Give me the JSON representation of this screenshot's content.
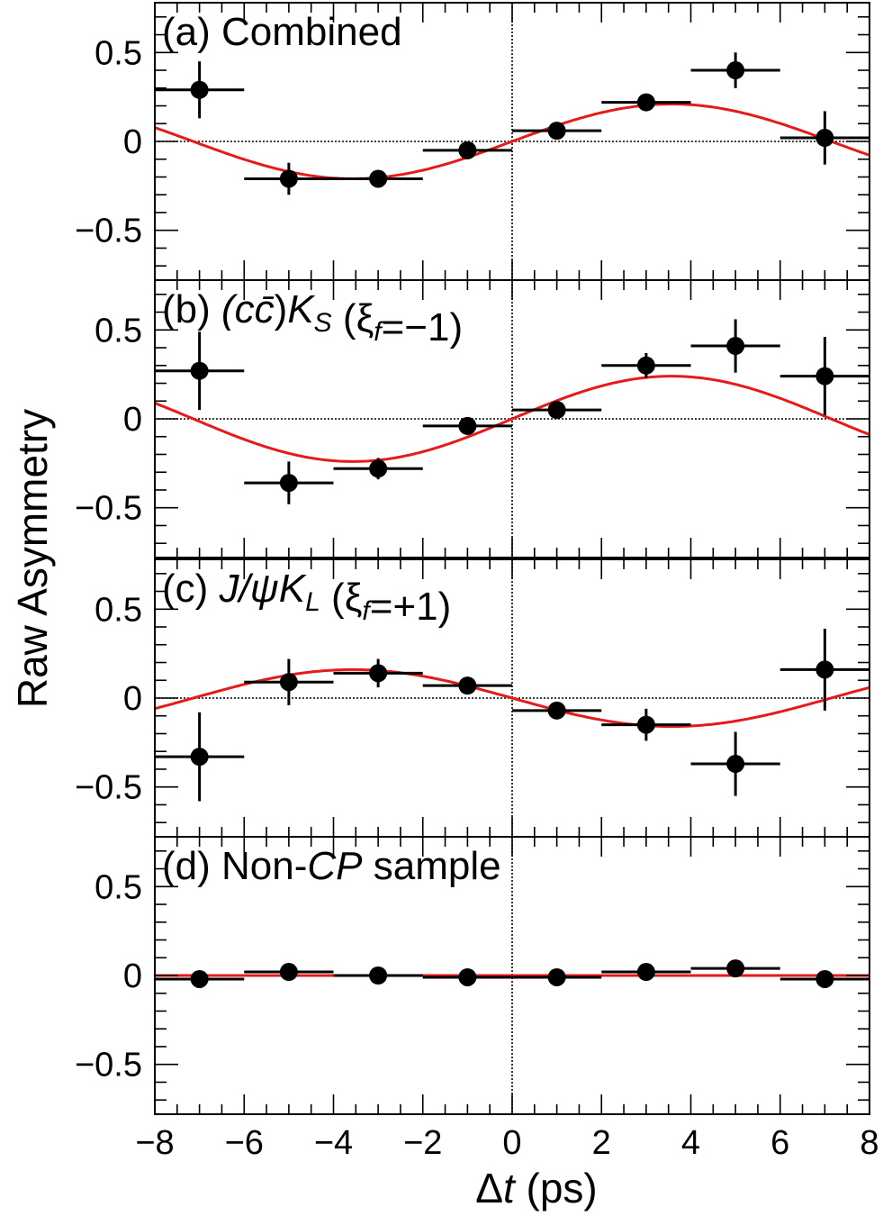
{
  "chart_data": [
    {
      "type": "scatter",
      "panel_label": "(a)",
      "title_parts": [
        {
          "t": "Combined",
          "s": "normal"
        }
      ],
      "x_bin_centers": [
        -7,
        -5,
        -3,
        -1,
        1,
        3,
        5,
        7
      ],
      "x_bin_half_width": 1,
      "y": [
        0.29,
        -0.21,
        -0.21,
        -0.05,
        0.06,
        0.22,
        0.4,
        0.02
      ],
      "y_err": [
        0.16,
        0.09,
        0.03,
        0.04,
        0.03,
        0.04,
        0.1,
        0.15
      ],
      "fit_curve": {
        "function": "sine",
        "amplitude": 0.21,
        "omega": 0.44,
        "color": "#e8191a"
      },
      "xlim": [
        -8,
        8
      ],
      "ylim": [
        -0.78,
        0.78
      ]
    },
    {
      "type": "scatter",
      "panel_label": "(b)",
      "title_parts": [
        {
          "t": "(c",
          "s": "italic"
        },
        {
          "t": "c̄",
          "s": "italic"
        },
        {
          "t": ")",
          "s": "normal"
        },
        {
          "t": "K",
          "s": "italic"
        },
        {
          "t": "S",
          "s": "italic-sub"
        },
        {
          "t": " (ξ",
          "s": "normal"
        },
        {
          "t": "f",
          "s": "italic-sub"
        },
        {
          "t": "=−1)",
          "s": "normal"
        }
      ],
      "x_bin_centers": [
        -7,
        -5,
        -3,
        -1,
        1,
        3,
        5,
        7
      ],
      "x_bin_half_width": 1,
      "y": [
        0.27,
        -0.36,
        -0.28,
        -0.04,
        0.05,
        0.3,
        0.41,
        0.24
      ],
      "y_err": [
        0.22,
        0.12,
        0.06,
        0.03,
        0.03,
        0.07,
        0.15,
        0.22
      ],
      "fit_curve": {
        "function": "sine",
        "amplitude": 0.24,
        "omega": 0.44,
        "color": "#e8191a"
      },
      "xlim": [
        -8,
        8
      ],
      "ylim": [
        -0.78,
        0.78
      ]
    },
    {
      "type": "scatter",
      "panel_label": "(c)",
      "title_parts": [
        {
          "t": "J/ψ",
          "s": "italic"
        },
        {
          "t": "K",
          "s": "italic"
        },
        {
          "t": "L",
          "s": "italic-sub"
        },
        {
          "t": "  (ξ",
          "s": "normal"
        },
        {
          "t": "f",
          "s": "italic-sub"
        },
        {
          "t": "=+1)",
          "s": "normal"
        }
      ],
      "x_bin_centers": [
        -7,
        -5,
        -3,
        -1,
        1,
        3,
        5,
        7
      ],
      "x_bin_half_width": 1,
      "y": [
        -0.33,
        0.09,
        0.14,
        0.07,
        -0.07,
        -0.15,
        -0.37,
        0.16
      ],
      "y_err": [
        0.25,
        0.13,
        0.08,
        0.03,
        0.03,
        0.09,
        0.18,
        0.23
      ],
      "fit_curve": {
        "function": "sine",
        "amplitude": -0.16,
        "omega": 0.44,
        "color": "#e8191a"
      },
      "xlim": [
        -8,
        8
      ],
      "ylim": [
        -0.78,
        0.78
      ]
    },
    {
      "type": "scatter",
      "panel_label": "(d)",
      "title_parts": [
        {
          "t": "Non-",
          "s": "normal"
        },
        {
          "t": "CP",
          "s": "italic"
        },
        {
          "t": " sample",
          "s": "normal"
        }
      ],
      "x_bin_centers": [
        -7,
        -5,
        -3,
        -1,
        1,
        3,
        5,
        7
      ],
      "x_bin_half_width": 1,
      "y": [
        -0.02,
        0.02,
        0.0,
        -0.01,
        -0.01,
        0.02,
        0.04,
        -0.02
      ],
      "y_err": [
        0.01,
        0.01,
        0.01,
        0.01,
        0.01,
        0.01,
        0.01,
        0.01
      ],
      "fit_curve": {
        "function": "sine",
        "amplitude": 0.0,
        "omega": 0.44,
        "color": "#e8191a"
      },
      "xlim": [
        -8,
        8
      ],
      "ylim": [
        -0.78,
        0.78
      ]
    }
  ],
  "y_ticks": [
    0.5,
    0,
    -0.5
  ],
  "y_tick_labels": [
    "0.5",
    "0",
    "−0.5"
  ],
  "x_ticks": [
    -8,
    -6,
    -4,
    -2,
    0,
    2,
    4,
    6,
    8
  ],
  "x_tick_labels": [
    "−8",
    "−6",
    "−4",
    "−2",
    "0",
    "2",
    "4",
    "6",
    "8"
  ],
  "ylabel": "Raw Asymmetry",
  "xlabel": {
    "delta": "Δ",
    "var": "t",
    "unit": " (ps)"
  },
  "colors": {
    "data": "#000000",
    "fit": "#e8191a"
  }
}
